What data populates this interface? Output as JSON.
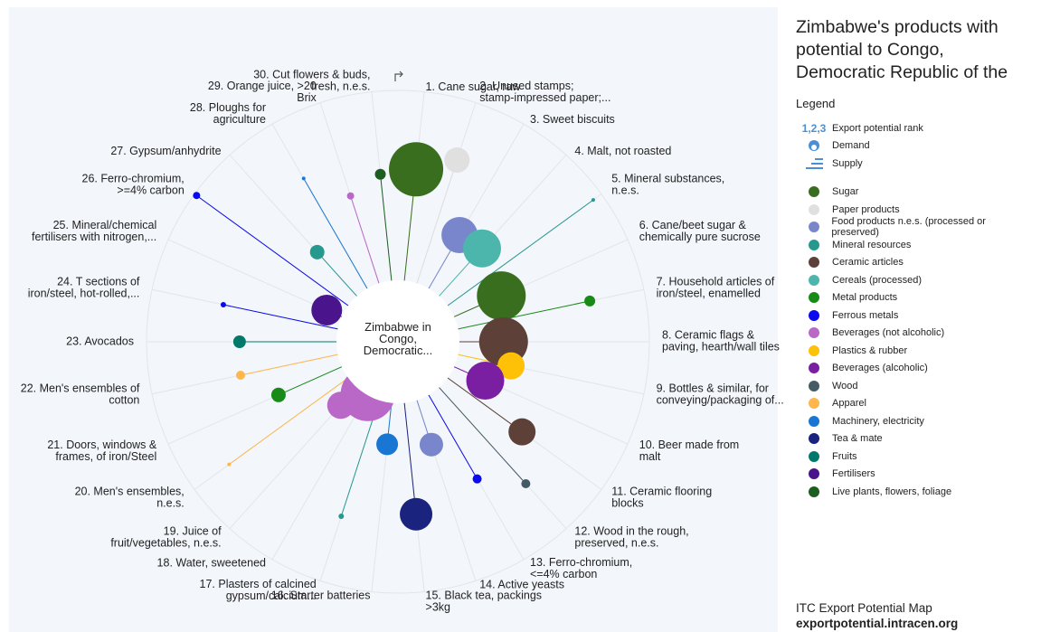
{
  "chart_data": {
    "type": "radial",
    "title": "Zimbabwe's products with potential to Congo, Democratic Republic of the",
    "center_label": "Zimbabwe in\nCongo,\nDemocratic...",
    "categories": [
      "1. Cane sugar, raw",
      "2. Unused stamps;\nstamp-impressed paper;...",
      "3. Sweet biscuits",
      "4. Malt, not roasted",
      "5. Mineral substances,\nn.e.s.",
      "6. Cane/beet sugar &\nchemically pure sucrose",
      "7. Household articles of\niron/steel, enamelled",
      "8. Ceramic flags &\npaving, hearth/wall tiles",
      "9. Bottles & similar, for\nconveying/packaging of...",
      "10. Beer made from\nmalt",
      "11. Ceramic flooring\nblocks",
      "12. Wood in the rough,\npreserved, n.e.s.",
      "13. Ferro-chromium,\n<=4% carbon",
      "14. Active yeasts",
      "15. Black tea, packings\n>3kg",
      "16. Starter batteries",
      "17. Plasters of calcined\ngypsum/calcium...",
      "18. Water, sweetened",
      "19. Juice of\nfruit/vegetables, n.e.s.",
      "20. Men's ensembles,\nn.e.s.",
      "21. Doors, windows &\nframes, of iron/Steel",
      "22. Men's ensembles of\ncotton",
      "23. Avocados",
      "24. T sections of\niron/steel, hot-rolled,...",
      "25. Mineral/chemical\nfertilisers with nitrogen,...",
      "26. Ferro-chromium,\n>=4% carbon",
      "27. Gypsum/anhydrite",
      "28. Ploughs for\nagriculture",
      "29. Orange juice, >20\nBrix",
      "30. Cut flowers & buds,\nfresh, n.e.s."
    ],
    "values": [
      69,
      76,
      49,
      50,
      96,
      45,
      78,
      42,
      46,
      38,
      61,
      76,
      63,
      43,
      69,
      41,
      73,
      24,
      34,
      83,
      52,
      64,
      63,
      71,
      31,
      99,
      48,
      75,
      61,
      67
    ],
    "sizes": [
      30,
      14,
      20,
      21,
      2,
      27,
      6,
      27,
      15,
      21,
      15,
      5,
      5,
      13,
      18,
      12,
      3,
      30,
      15,
      2,
      8,
      5,
      7,
      3,
      17,
      4,
      8,
      2,
      4,
      6
    ],
    "sector": [
      0,
      1,
      2,
      5,
      3,
      0,
      6,
      4,
      9,
      10,
      4,
      11,
      7,
      2,
      14,
      13,
      3,
      8,
      8,
      12,
      6,
      12,
      15,
      7,
      16,
      7,
      3,
      13,
      8,
      17
    ],
    "rlim": [
      0,
      100
    ],
    "legend_title": "Legend",
    "legend_keys": [
      {
        "symbol": "1,2,3",
        "label": "Export potential rank"
      },
      {
        "label": "Demand"
      },
      {
        "label": "Supply"
      }
    ],
    "sectors": [
      {
        "name": "Sugar",
        "color": "#3a6e1f"
      },
      {
        "name": "Paper products",
        "color": "#e0e0e0"
      },
      {
        "name": "Food products n.e.s. (processed or preserved)",
        "color": "#7986cb"
      },
      {
        "name": "Mineral resources",
        "color": "#26998f"
      },
      {
        "name": "Ceramic articles",
        "color": "#5d4037"
      },
      {
        "name": "Cereals (processed)",
        "color": "#4db6ac"
      },
      {
        "name": "Metal products",
        "color": "#178a17"
      },
      {
        "name": "Ferrous metals",
        "color": "#0a0aee"
      },
      {
        "name": "Beverages (not alcoholic)",
        "color": "#ba68c8"
      },
      {
        "name": "Plastics & rubber",
        "color": "#ffc107"
      },
      {
        "name": "Beverages (alcoholic)",
        "color": "#7b1fa2"
      },
      {
        "name": "Wood",
        "color": "#455a64"
      },
      {
        "name": "Apparel",
        "color": "#ffb74d"
      },
      {
        "name": "Machinery, electricity",
        "color": "#1976d2"
      },
      {
        "name": "Tea & mate",
        "color": "#1a237e"
      },
      {
        "name": "Fruits",
        "color": "#00796b"
      },
      {
        "name": "Fertilisers",
        "color": "#4a148c"
      },
      {
        "name": "Live plants, flowers, foliage",
        "color": "#1b5e20"
      }
    ],
    "footer": [
      "ITC Export Potential Map",
      "exportpotential.intracen.org"
    ]
  }
}
